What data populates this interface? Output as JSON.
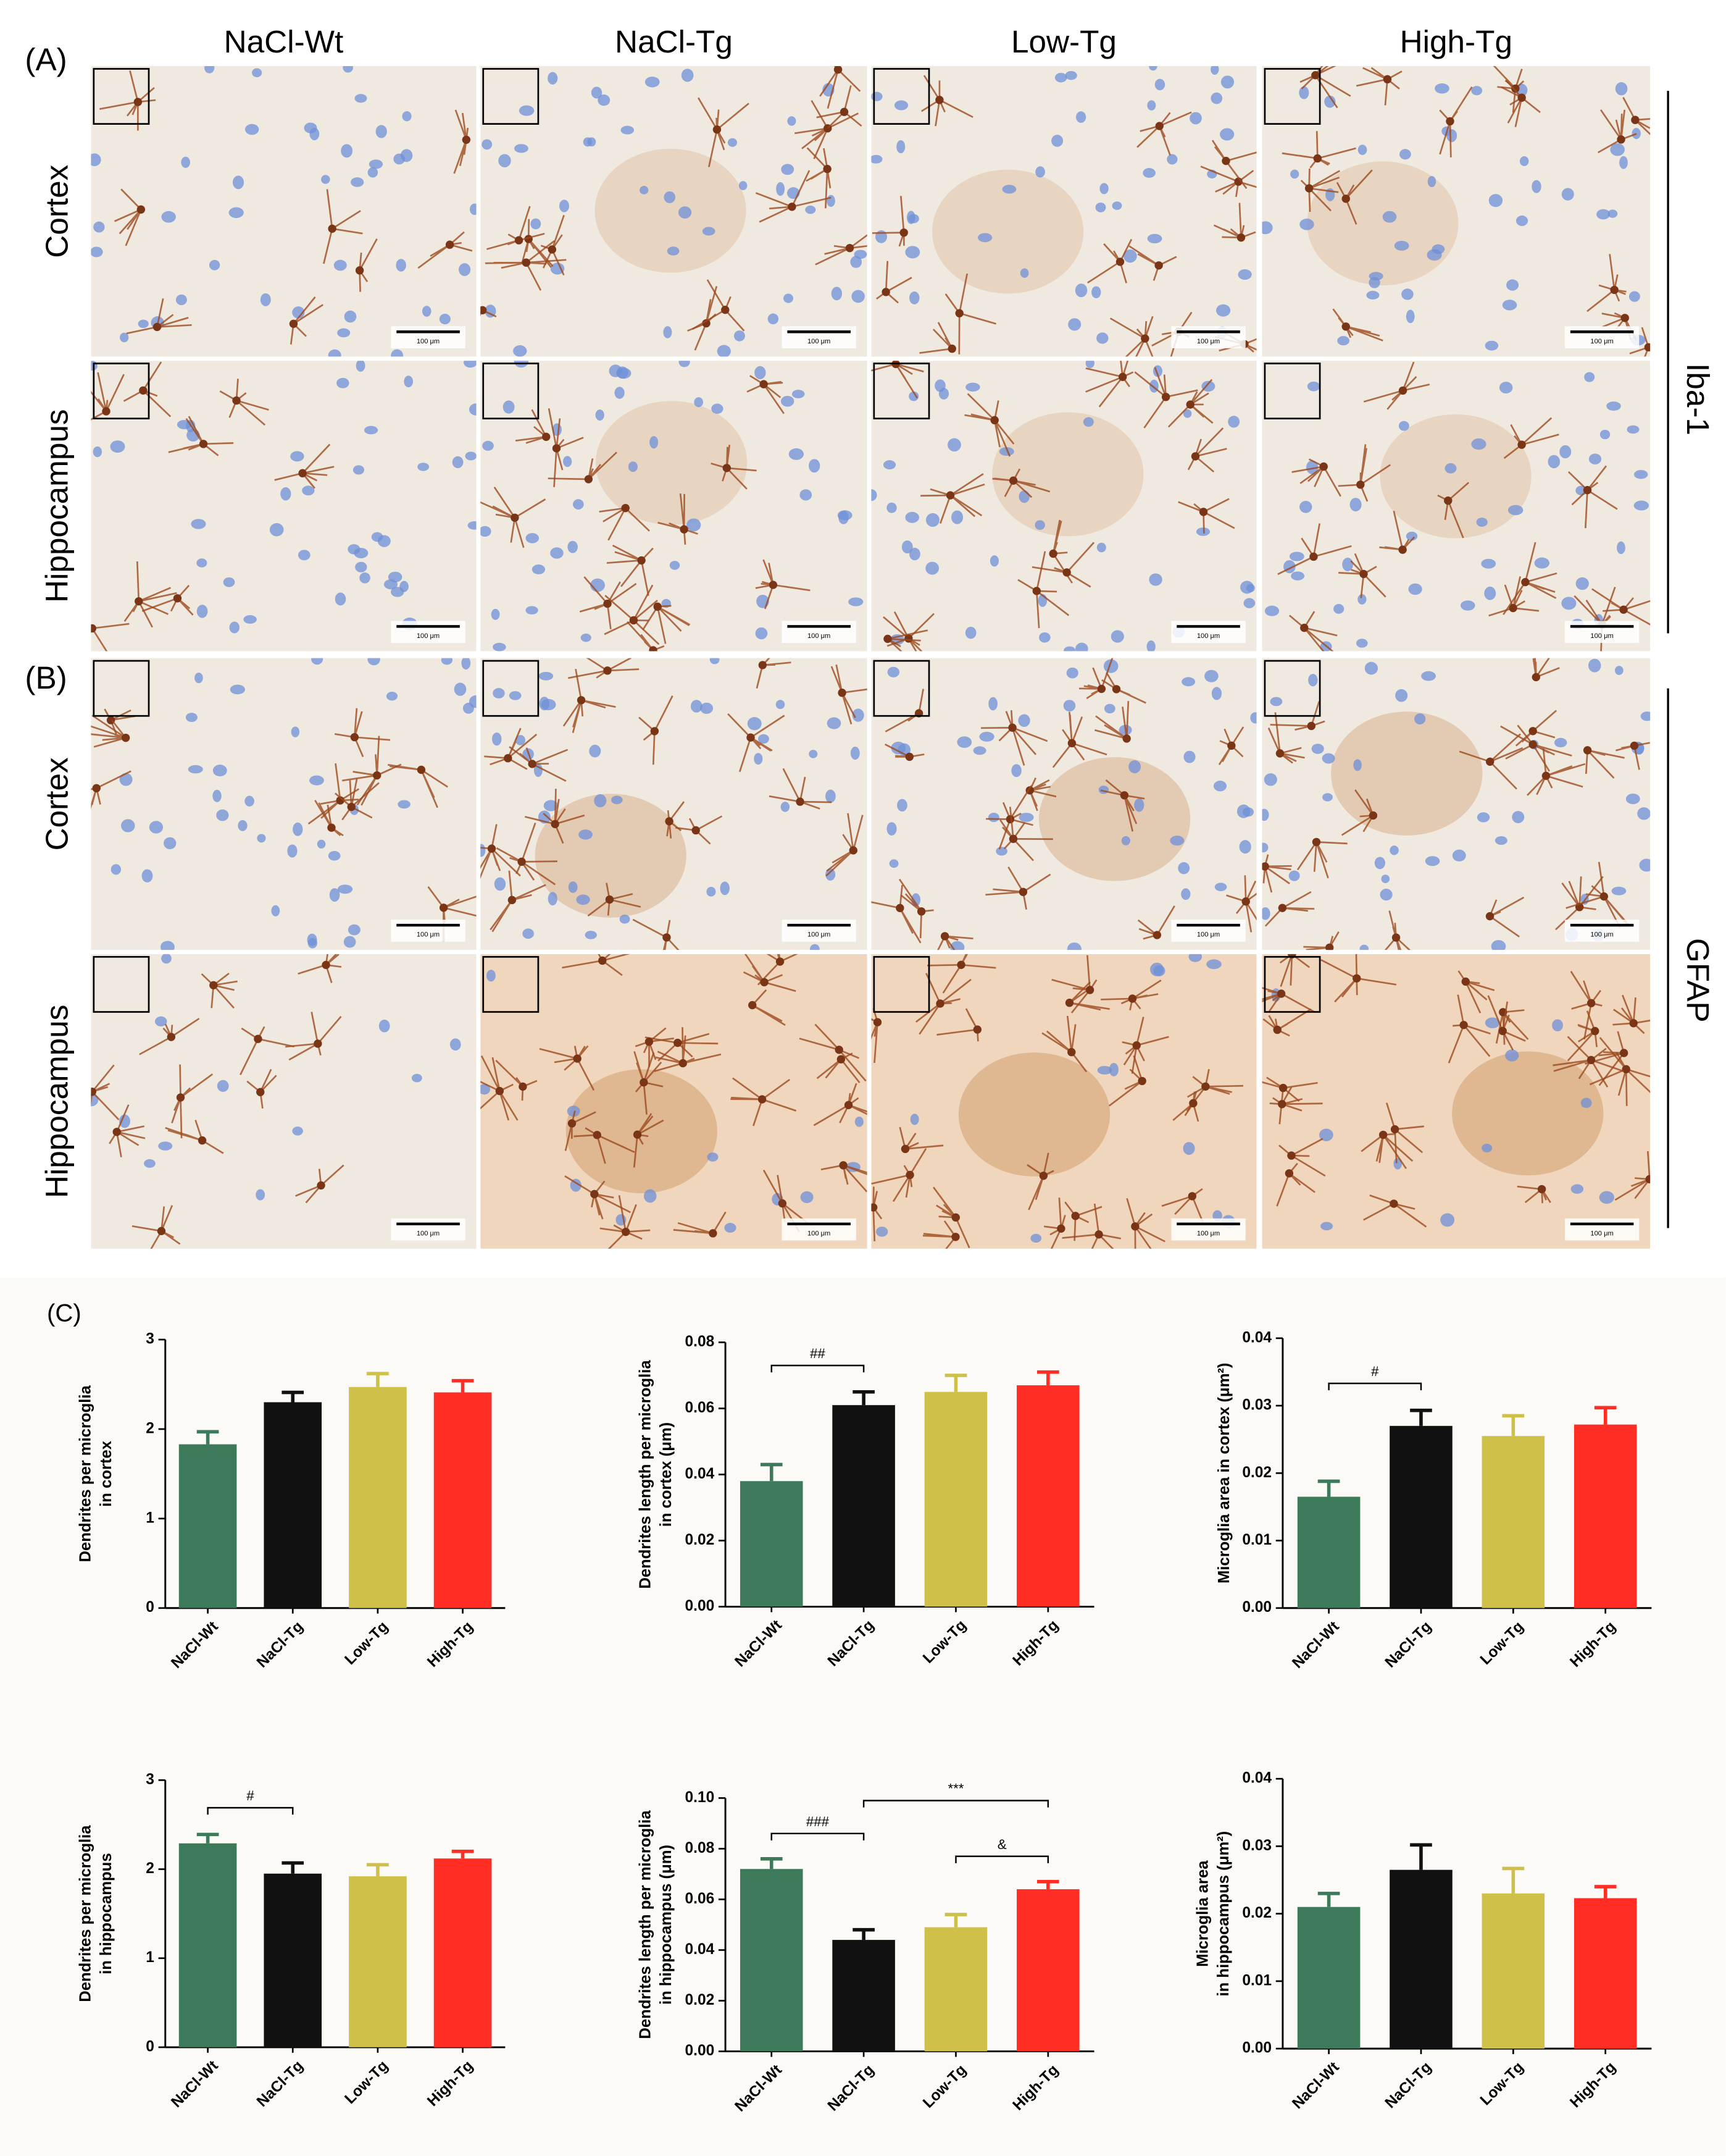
{
  "figure": {
    "panel_labels": [
      "(A)",
      "(B)",
      "(C)"
    ],
    "columns": [
      "NaCl-Wt",
      "NaCl-Tg",
      "Low-Tg",
      "High-Tg"
    ],
    "rows": [
      "Cortex",
      "Hippocampus",
      "Cortex",
      "Hippocampus"
    ],
    "stains": [
      "Iba-1",
      "GFAP"
    ],
    "scale_bar": "100 μm"
  },
  "chart_data": [
    {
      "type": "bar",
      "ylabel": [
        "Dendrites per microglia",
        "in cortex"
      ],
      "categories": [
        "NaCl-Wt",
        "NaCl-Tg",
        "Low-Tg",
        "High-Tg"
      ],
      "values": [
        1.83,
        2.3,
        2.47,
        2.41
      ],
      "errors": [
        0.14,
        0.11,
        0.15,
        0.13
      ],
      "colors": [
        "#3d7a5a",
        "#111111",
        "#cfc04a",
        "#ff2d24"
      ],
      "ylim": [
        0,
        3
      ],
      "yticks": [
        0,
        1,
        2,
        3
      ],
      "annotations": []
    },
    {
      "type": "bar",
      "ylabel": [
        "Dendrites length per microglia",
        "in cortex (μm)"
      ],
      "categories": [
        "NaCl-Wt",
        "NaCl-Tg",
        "Low-Tg",
        "High-Tg"
      ],
      "values": [
        0.038,
        0.061,
        0.065,
        0.067
      ],
      "errors": [
        0.005,
        0.004,
        0.005,
        0.004
      ],
      "colors": [
        "#3d7a5a",
        "#111111",
        "#cfc04a",
        "#ff2d24"
      ],
      "ylim": [
        0,
        0.08
      ],
      "yticks": [
        {
          "value": 0,
          "label": "0.00"
        },
        0.02,
        0.04,
        0.06,
        0.08
      ],
      "annotations": [
        {
          "label": "##",
          "from": "NaCl-Wt",
          "to": "NaCl-Tg"
        }
      ]
    },
    {
      "type": "bar",
      "ylabel": [
        "Microglia area in cortex (μm²)"
      ],
      "categories": [
        "NaCl-Wt",
        "NaCl-Tg",
        "Low-Tg",
        "High-Tg"
      ],
      "values": [
        0.0165,
        0.027,
        0.0255,
        0.0272
      ],
      "errors": [
        0.0023,
        0.0023,
        0.003,
        0.0025
      ],
      "colors": [
        "#3d7a5a",
        "#111111",
        "#cfc04a",
        "#ff2d24"
      ],
      "ylim": [
        0,
        0.04
      ],
      "yticks": [
        {
          "value": 0,
          "label": "0.00"
        },
        0.01,
        0.02,
        0.03,
        0.04
      ],
      "annotations": [
        {
          "label": "#",
          "from": "NaCl-Wt",
          "to": "NaCl-Tg"
        }
      ]
    },
    {
      "type": "bar",
      "ylabel": [
        "Dendrites per microglia",
        "in hippocampus"
      ],
      "categories": [
        "NaCl-Wt",
        "NaCl-Tg",
        "Low-Tg",
        "High-Tg"
      ],
      "values": [
        2.29,
        1.95,
        1.92,
        2.12
      ],
      "errors": [
        0.1,
        0.12,
        0.13,
        0.08
      ],
      "colors": [
        "#3d7a5a",
        "#111111",
        "#cfc04a",
        "#ff2d24"
      ],
      "ylim": [
        0,
        3
      ],
      "yticks": [
        0,
        1,
        2,
        3
      ],
      "annotations": [
        {
          "label": "#",
          "from": "NaCl-Wt",
          "to": "NaCl-Tg"
        }
      ]
    },
    {
      "type": "bar",
      "ylabel": [
        "Dendrites length per microglia",
        "in hippocampus (μm)"
      ],
      "categories": [
        "NaCl-Wt",
        "NaCl-Tg",
        "Low-Tg",
        "High-Tg"
      ],
      "values": [
        0.072,
        0.044,
        0.049,
        0.064
      ],
      "errors": [
        0.004,
        0.004,
        0.005,
        0.003
      ],
      "colors": [
        "#3d7a5a",
        "#111111",
        "#cfc04a",
        "#ff2d24"
      ],
      "ylim": [
        0,
        0.1
      ],
      "yticks": [
        {
          "value": 0,
          "label": "0.00"
        },
        0.02,
        0.04,
        0.06,
        0.08,
        {
          "value": 0.1,
          "label": "0.10"
        }
      ],
      "annotations": [
        {
          "label": "###",
          "from": "NaCl-Wt",
          "to": "NaCl-Tg"
        },
        {
          "label": "&",
          "from": "Low-Tg",
          "to": "High-Tg"
        },
        {
          "label": "***",
          "from": "NaCl-Tg",
          "to": "High-Tg"
        }
      ]
    },
    {
      "type": "bar",
      "ylabel": [
        "Microglia  area",
        "in hippocampus (μm²)"
      ],
      "categories": [
        "NaCl-Wt",
        "NaCl-Tg",
        "Low-Tg",
        "High-Tg"
      ],
      "values": [
        0.021,
        0.0265,
        0.023,
        0.0223
      ],
      "errors": [
        0.002,
        0.0037,
        0.0037,
        0.0017
      ],
      "colors": [
        "#3d7a5a",
        "#111111",
        "#cfc04a",
        "#ff2d24"
      ],
      "ylim": [
        0,
        0.04
      ],
      "yticks": [
        {
          "value": 0,
          "label": "0.00"
        },
        0.01,
        0.02,
        0.03,
        0.04
      ],
      "annotations": []
    }
  ]
}
